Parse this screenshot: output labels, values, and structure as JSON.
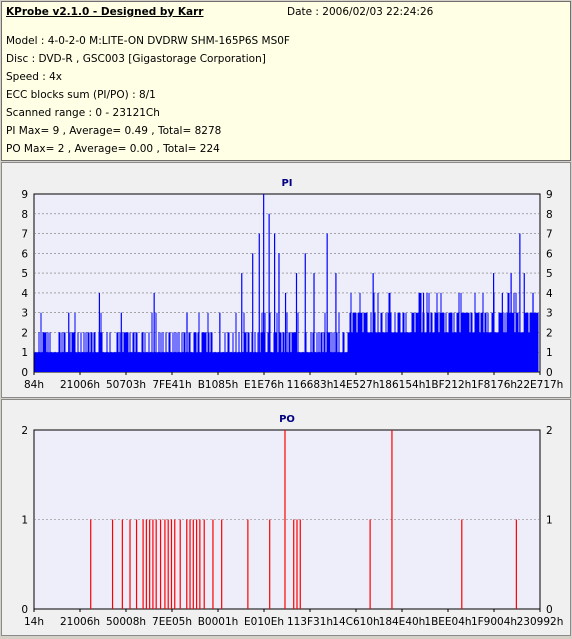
{
  "header": {
    "title": "KProbe v2.1.0 - Designed by Karr",
    "date": "Date : 2006/02/03 22:24:26",
    "lines": [
      "Model : 4-0-2-0 M:LITE-ON DVDRW SHM-165P6S MS0F",
      "Disc : DVD-R , GSC003 [Gigastorage Corporation]",
      "Speed : 4x",
      "ECC blocks sum (PI/PO) : 8/1",
      "Scanned range : 0 - 23121Ch",
      "PI Max= 9 , Average= 0.49 , Total= 8278",
      "PO Max= 2 , Average= 0.00 , Total= 224"
    ]
  },
  "colors": {
    "pi": "#0000ff",
    "po": "#ff0000",
    "plot_bg": "#eeeefa",
    "title": "#000080"
  },
  "chart_data": [
    {
      "type": "bar",
      "title": "PI",
      "ylim": [
        0,
        9
      ],
      "yticks": [
        0,
        1,
        2,
        3,
        4,
        5,
        6,
        7,
        8,
        9
      ],
      "xticks": [
        "84h",
        "21006h",
        "50703h",
        "7FE41h",
        "B1085h",
        "E1E76h",
        "116683h",
        "14E527h",
        "186154h",
        "1BF212h",
        "1F8176h",
        "22E717h"
      ],
      "x_range": [
        132,
        231190
      ],
      "spikes": [
        {
          "x": 16000,
          "v": 3
        },
        {
          "x": 30000,
          "v": 4
        },
        {
          "x": 40000,
          "v": 3
        },
        {
          "x": 55000,
          "v": 4
        },
        {
          "x": 70000,
          "v": 3
        },
        {
          "x": 85000,
          "v": 3
        },
        {
          "x": 95000,
          "v": 5
        },
        {
          "x": 100000,
          "v": 6
        },
        {
          "x": 103000,
          "v": 7
        },
        {
          "x": 105000,
          "v": 9
        },
        {
          "x": 107500,
          "v": 8
        },
        {
          "x": 110000,
          "v": 7
        },
        {
          "x": 112000,
          "v": 6
        },
        {
          "x": 115000,
          "v": 4
        },
        {
          "x": 120000,
          "v": 5
        },
        {
          "x": 124000,
          "v": 6
        },
        {
          "x": 128000,
          "v": 5
        },
        {
          "x": 134000,
          "v": 7
        },
        {
          "x": 138000,
          "v": 5
        },
        {
          "x": 146000,
          "v": 3
        },
        {
          "x": 155000,
          "v": 5
        },
        {
          "x": 176000,
          "v": 4
        },
        {
          "x": 178000,
          "v": 4
        },
        {
          "x": 210000,
          "v": 5
        },
        {
          "x": 214000,
          "v": 4
        },
        {
          "x": 218000,
          "v": 5
        },
        {
          "x": 222000,
          "v": 7
        },
        {
          "x": 224000,
          "v": 5
        },
        {
          "x": 228000,
          "v": 4
        }
      ]
    },
    {
      "type": "bar",
      "title": "PO",
      "ylim": [
        0,
        2
      ],
      "yticks": [
        0,
        1,
        2
      ],
      "xticks": [
        "14h",
        "21006h",
        "50008h",
        "7EE05h",
        "B0001h",
        "E010Eh",
        "113F31h",
        "14C610h",
        "184E40h",
        "1BEE04h",
        "1F9004h",
        "230992h"
      ],
      "x_range": [
        20,
        231826
      ],
      "bars": [
        {
          "x": 26000,
          "v": 1
        },
        {
          "x": 36000,
          "v": 1
        },
        {
          "x": 40500,
          "v": 1
        },
        {
          "x": 44000,
          "v": 1
        },
        {
          "x": 47000,
          "v": 1
        },
        {
          "x": 50000,
          "v": 1
        },
        {
          "x": 51500,
          "v": 1
        },
        {
          "x": 53000,
          "v": 1
        },
        {
          "x": 54500,
          "v": 1
        },
        {
          "x": 56000,
          "v": 1
        },
        {
          "x": 58000,
          "v": 1
        },
        {
          "x": 60000,
          "v": 1
        },
        {
          "x": 61500,
          "v": 1
        },
        {
          "x": 63000,
          "v": 1
        },
        {
          "x": 64500,
          "v": 1
        },
        {
          "x": 67000,
          "v": 1
        },
        {
          "x": 70000,
          "v": 1
        },
        {
          "x": 71500,
          "v": 1
        },
        {
          "x": 73000,
          "v": 1
        },
        {
          "x": 74500,
          "v": 1
        },
        {
          "x": 76000,
          "v": 1
        },
        {
          "x": 78000,
          "v": 1
        },
        {
          "x": 82000,
          "v": 1
        },
        {
          "x": 86000,
          "v": 1
        },
        {
          "x": 98000,
          "v": 1
        },
        {
          "x": 108000,
          "v": 1
        },
        {
          "x": 115000,
          "v": 2
        },
        {
          "x": 119000,
          "v": 1
        },
        {
          "x": 120500,
          "v": 1
        },
        {
          "x": 122000,
          "v": 1
        },
        {
          "x": 154000,
          "v": 1
        },
        {
          "x": 164000,
          "v": 2
        },
        {
          "x": 196000,
          "v": 1
        },
        {
          "x": 221000,
          "v": 1
        }
      ]
    }
  ]
}
